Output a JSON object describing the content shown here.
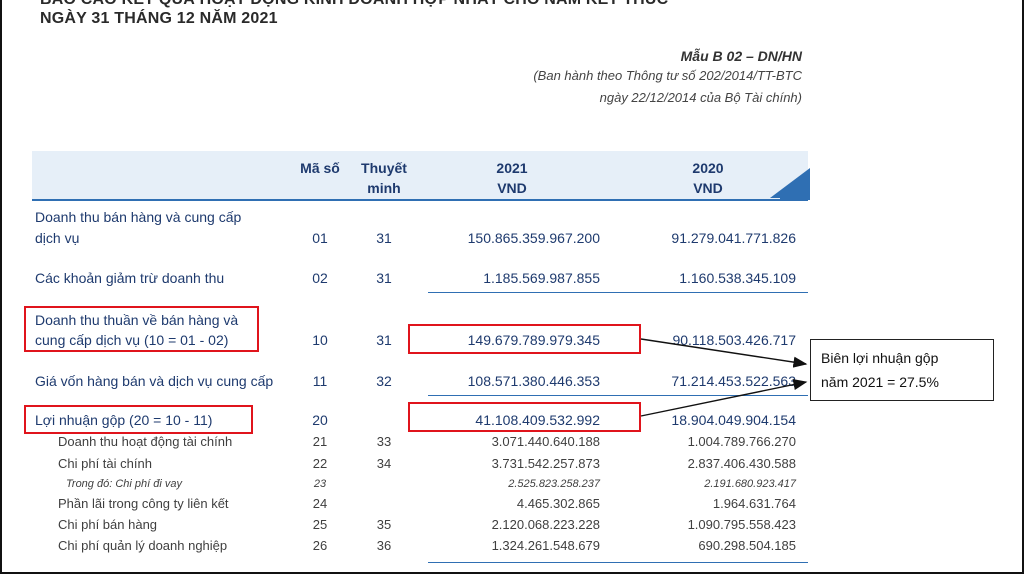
{
  "header": {
    "title_line1": "BÁO CÁO KẾT QUẢ HOẠT ĐỘNG KINH DOANH HỢP NHẤT CHO NĂM KẾT THÚC",
    "title_line2": "NGÀY 31 THÁNG 12 NĂM 2021",
    "form_code": "Mẫu B 02 – DN/HN",
    "form_note_line1": "(Ban hành theo Thông tư số 202/2014/TT-BTC",
    "form_note_line2": "ngày 22/12/2014 của Bộ Tài chính)"
  },
  "table": {
    "headers": {
      "code": "Mã số",
      "note_line1": "Thuyết",
      "note_line2": "minh",
      "y2021_line1": "2021",
      "y2021_line2": "VND",
      "y2020_line1": "2020",
      "y2020_line2": "VND"
    },
    "rows": [
      {
        "label_line1": "Doanh thu bán hàng và cung cấp",
        "label_line2": "dịch vụ",
        "code": "01",
        "note": "31",
        "v2021": "150.865.359.967.200",
        "v2020": "91.279.041.771.826"
      },
      {
        "label": "Các khoản giảm trừ doanh thu",
        "code": "02",
        "note": "31",
        "v2021": "1.185.569.987.855",
        "v2020": "1.160.538.345.109"
      },
      {
        "label_line1": "Doanh thu thuần về bán hàng và",
        "label_line2": "cung cấp dịch vụ (10 = 01 - 02)",
        "code": "10",
        "note": "31",
        "v2021": "149.679.789.979.345",
        "v2020": "90.118.503.426.717"
      },
      {
        "label": "Giá vốn hàng bán và dịch vụ cung cấp",
        "code": "11",
        "note": "32",
        "v2021": "108.571.380.446.353",
        "v2020": "71.214.453.522.563"
      },
      {
        "label": "Lợi nhuận gộp (20 = 10 - 11)",
        "code": "20",
        "note": "",
        "v2021": "41.108.409.532.992",
        "v2020": "18.904.049.904.154"
      },
      {
        "label": "Doanh thu hoạt động tài chính",
        "code": "21",
        "note": "33",
        "v2021": "3.071.440.640.188",
        "v2020": "1.004.789.766.270"
      },
      {
        "label": "Chi phí tài chính",
        "code": "22",
        "note": "34",
        "v2021": "3.731.542.257.873",
        "v2020": "2.837.406.430.588"
      },
      {
        "label": "Trong đó: Chi phí đi vay",
        "code": "23",
        "note": "",
        "v2021": "2.525.823.258.237",
        "v2020": "2.191.680.923.417"
      },
      {
        "label": "Phần lãi trong công ty liên kết",
        "code": "24",
        "note": "",
        "v2021": "4.465.302.865",
        "v2020": "1.964.631.764"
      },
      {
        "label": "Chi phí bán hàng",
        "code": "25",
        "note": "35",
        "v2021": "2.120.068.223.228",
        "v2020": "1.090.795.558.423"
      },
      {
        "label": "Chi phí quản lý doanh nghiệp",
        "code": "26",
        "note": "36",
        "v2021": "1.324.261.548.679",
        "v2020": "690.298.504.185"
      }
    ]
  },
  "callout": {
    "line1": "Biên lợi nhuận gộp",
    "line2": "năm 2021 = 27.5%"
  },
  "colors": {
    "accent_blue": "#2f6fb3",
    "header_bg": "#e6eff8",
    "highlight_red": "#e0141c"
  }
}
